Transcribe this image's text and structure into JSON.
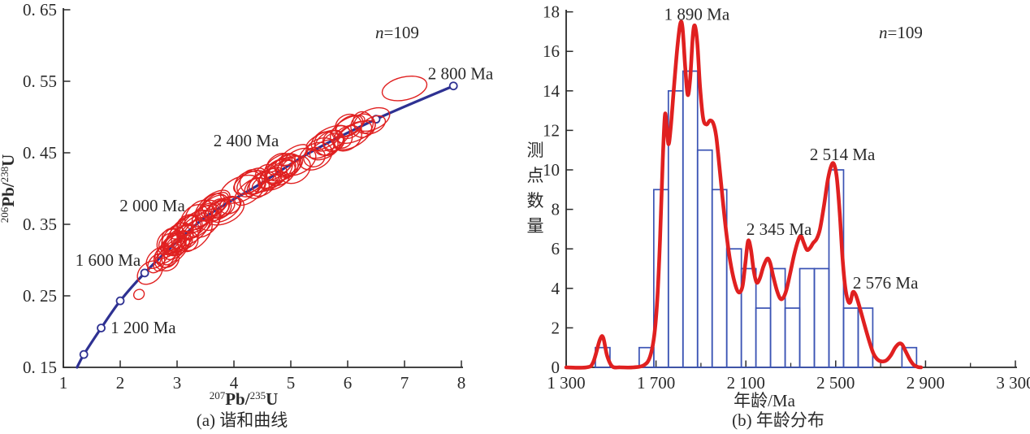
{
  "figure": {
    "n_italic": "n",
    "n_rest": "=109"
  },
  "chart_data": [
    {
      "type": "scatter",
      "subtype": "concordia-with-error-ellipses",
      "panel_caption": "(a) 谐和曲线",
      "xlabel_parts": [
        {
          "t": "207"
        },
        {
          "t": "Pb/"
        },
        {
          "t": "235"
        },
        {
          "t": "U"
        }
      ],
      "ylabel_parts": [
        {
          "t": "206"
        },
        {
          "t": "Pb/"
        },
        {
          "t": "238"
        },
        {
          "t": "U"
        }
      ],
      "xlim": [
        1,
        8
      ],
      "ylim": [
        0.15,
        0.65
      ],
      "x_ticks": [
        "1",
        "2",
        "3",
        "4",
        "5",
        "6",
        "7",
        "8"
      ],
      "y_ticks": [
        0.15,
        0.25,
        0.35,
        0.45,
        0.55,
        0.65
      ],
      "y_tick_labels": [
        "0. 15",
        "0. 25",
        "0. 35",
        "0. 45",
        "0. 55",
        "0. 65"
      ],
      "n_pos": [
        6.49,
        0.607
      ],
      "concordia_points": [
        [
          1.24,
          0.15
        ],
        [
          1.36,
          0.168
        ],
        [
          1.665,
          0.205
        ],
        [
          2.0,
          0.243
        ],
        [
          2.43,
          0.282
        ],
        [
          2.95,
          0.322
        ],
        [
          3.55,
          0.363
        ],
        [
          4.45,
          0.406
        ],
        [
          5.35,
          0.451
        ],
        [
          6.5,
          0.497
        ],
        [
          7.86,
          0.5435
        ]
      ],
      "markers": [
        [
          1.36,
          0.168
        ],
        [
          1.665,
          0.205
        ],
        [
          2.0,
          0.243
        ],
        [
          2.43,
          0.282
        ],
        [
          6.5,
          0.497
        ],
        [
          7.86,
          0.5435
        ]
      ],
      "age_labels": [
        {
          "text": "1 200 Ma",
          "x": 1.83,
          "y": 0.198
        },
        {
          "text": "1 600 Ma",
          "x": 1.21,
          "y": 0.292
        },
        {
          "text": "2 000 Ma",
          "x": 1.99,
          "y": 0.368
        },
        {
          "text": "2 400 Ma",
          "x": 3.64,
          "y": 0.459
        },
        {
          "text": "2 800 Ma",
          "x": 7.41,
          "y": 0.553
        }
      ],
      "ellipses_explicit": [
        {
          "x": 2.33,
          "y": 0.252,
          "rx": 0.095,
          "ry": 0.0068,
          "rot": -34
        },
        {
          "x": 7.0,
          "y": 0.54,
          "rx": 0.4,
          "ry": 0.016,
          "rot": -13
        }
      ],
      "ellipse_clusters": [
        {
          "cx": 2.62,
          "count": 3,
          "sx": 0.1,
          "sy": 0.008
        },
        {
          "cx": 2.95,
          "count": 12,
          "sx": 0.2,
          "sy": 0.012
        },
        {
          "cx": 3.15,
          "count": 16,
          "sx": 0.25,
          "sy": 0.013
        },
        {
          "cx": 3.5,
          "count": 10,
          "sx": 0.22,
          "sy": 0.012
        },
        {
          "cx": 3.95,
          "count": 7,
          "sx": 0.22,
          "sy": 0.01
        },
        {
          "cx": 4.5,
          "count": 14,
          "sx": 0.25,
          "sy": 0.012
        },
        {
          "cx": 4.95,
          "count": 11,
          "sx": 0.2,
          "sy": 0.011
        },
        {
          "cx": 5.5,
          "count": 8,
          "sx": 0.22,
          "sy": 0.01
        },
        {
          "cx": 5.95,
          "count": 9,
          "sx": 0.22,
          "sy": 0.01
        },
        {
          "cx": 6.35,
          "count": 4,
          "sx": 0.14,
          "sy": 0.008
        }
      ],
      "ellipse_seed": 13,
      "colors": {
        "curve": "#2e3192",
        "ellipse": "#e02020",
        "axis": "#2a2a2a"
      }
    },
    {
      "type": "histogram",
      "subtype": "age-distribution-with-kde",
      "panel_caption": "(b) 年龄分布",
      "xlabel": "年龄/Ma",
      "ylabel": "测点数量",
      "xlim": [
        1300,
        3300
      ],
      "ylim": [
        0,
        18
      ],
      "x_major_ticks": [
        1300,
        1700,
        2100,
        2500,
        2900,
        3300
      ],
      "x_tick_labels": [
        "1 300",
        "1 700",
        "2 100",
        "2 500",
        "2 900",
        "3 300"
      ],
      "x_minor_ticks": [
        1500,
        1900,
        2300,
        2700,
        3100
      ],
      "y_ticks": [
        0,
        2,
        4,
        6,
        8,
        10,
        12,
        14,
        16,
        18
      ],
      "y_tick_labels": [
        "0",
        "2",
        "4",
        "6",
        "8",
        "10",
        "12",
        "14",
        "16",
        "18"
      ],
      "n_pos": [
        2815,
        17.0
      ],
      "bin_width": 65,
      "bins": [
        {
          "start": 1430,
          "count": 1
        },
        {
          "start": 1625,
          "count": 1
        },
        {
          "start": 1690,
          "count": 9
        },
        {
          "start": 1755,
          "count": 14
        },
        {
          "start": 1820,
          "count": 15
        },
        {
          "start": 1885,
          "count": 11
        },
        {
          "start": 1950,
          "count": 9
        },
        {
          "start": 2015,
          "count": 6
        },
        {
          "start": 2080,
          "count": 5
        },
        {
          "start": 2145,
          "count": 3
        },
        {
          "start": 2210,
          "count": 5
        },
        {
          "start": 2275,
          "count": 3
        },
        {
          "start": 2340,
          "count": 5
        },
        {
          "start": 2405,
          "count": 5
        },
        {
          "start": 2470,
          "count": 10
        },
        {
          "start": 2535,
          "count": 3
        },
        {
          "start": 2600,
          "count": 3
        },
        {
          "start": 2795,
          "count": 1
        }
      ],
      "kde": [
        [
          1300,
          0
        ],
        [
          1390,
          0
        ],
        [
          1420,
          0.25
        ],
        [
          1450,
          1.4
        ],
        [
          1465,
          1.5
        ],
        [
          1482,
          0.6
        ],
        [
          1505,
          0.05
        ],
        [
          1540,
          0
        ],
        [
          1600,
          0
        ],
        [
          1645,
          0.1
        ],
        [
          1672,
          0.5
        ],
        [
          1692,
          1.6
        ],
        [
          1706,
          3.5
        ],
        [
          1718,
          6.5
        ],
        [
          1730,
          10.5
        ],
        [
          1740,
          12.8
        ],
        [
          1748,
          12.1
        ],
        [
          1756,
          11.3
        ],
        [
          1766,
          12.2
        ],
        [
          1780,
          14.2
        ],
        [
          1795,
          16.2
        ],
        [
          1808,
          17.4
        ],
        [
          1818,
          17.2
        ],
        [
          1830,
          15.2
        ],
        [
          1841,
          13.8
        ],
        [
          1852,
          14.6
        ],
        [
          1864,
          16.8
        ],
        [
          1873,
          17.3
        ],
        [
          1884,
          16.4
        ],
        [
          1896,
          14.2
        ],
        [
          1910,
          12.6
        ],
        [
          1925,
          12.3
        ],
        [
          1940,
          12.5
        ],
        [
          1955,
          12.35
        ],
        [
          1968,
          11.7
        ],
        [
          1982,
          10.2
        ],
        [
          1996,
          8.6
        ],
        [
          2012,
          6.9
        ],
        [
          2030,
          5.4
        ],
        [
          2050,
          4.3
        ],
        [
          2068,
          3.8
        ],
        [
          2085,
          4.1
        ],
        [
          2098,
          5.3
        ],
        [
          2110,
          6.4
        ],
        [
          2122,
          6.0
        ],
        [
          2135,
          4.9
        ],
        [
          2148,
          4.3
        ],
        [
          2162,
          4.5
        ],
        [
          2178,
          5.1
        ],
        [
          2195,
          5.5
        ],
        [
          2208,
          5.3
        ],
        [
          2222,
          4.6
        ],
        [
          2238,
          3.9
        ],
        [
          2252,
          3.5
        ],
        [
          2265,
          3.5
        ],
        [
          2280,
          3.9
        ],
        [
          2298,
          4.8
        ],
        [
          2315,
          5.7
        ],
        [
          2332,
          6.4
        ],
        [
          2345,
          6.65
        ],
        [
          2358,
          6.3
        ],
        [
          2372,
          5.95
        ],
        [
          2386,
          6.05
        ],
        [
          2400,
          6.3
        ],
        [
          2415,
          6.5
        ],
        [
          2430,
          7.0
        ],
        [
          2448,
          8.2
        ],
        [
          2465,
          9.5
        ],
        [
          2480,
          10.2
        ],
        [
          2492,
          10.3
        ],
        [
          2505,
          9.6
        ],
        [
          2518,
          7.8
        ],
        [
          2530,
          5.6
        ],
        [
          2542,
          4.1
        ],
        [
          2554,
          3.4
        ],
        [
          2565,
          3.3
        ],
        [
          2576,
          3.8
        ],
        [
          2588,
          3.7
        ],
        [
          2600,
          3.3
        ],
        [
          2615,
          2.7
        ],
        [
          2632,
          2.0
        ],
        [
          2650,
          1.3
        ],
        [
          2668,
          0.7
        ],
        [
          2686,
          0.4
        ],
        [
          2705,
          0.3
        ],
        [
          2725,
          0.35
        ],
        [
          2745,
          0.6
        ],
        [
          2765,
          1.0
        ],
        [
          2782,
          1.2
        ],
        [
          2796,
          1.15
        ],
        [
          2812,
          0.8
        ],
        [
          2830,
          0.4
        ],
        [
          2848,
          0.12
        ],
        [
          2866,
          0.02
        ],
        [
          2880,
          0
        ]
      ],
      "peak_labels": [
        {
          "text": "1 890 Ma",
          "x": 1882,
          "y": 17.6
        },
        {
          "text": "2 514 Ma",
          "x": 2530,
          "y": 10.5
        },
        {
          "text": "2 345 Ma",
          "x": 2248,
          "y": 6.7
        },
        {
          "text": "2 576 Ma",
          "x": 2722,
          "y": 4.0
        }
      ],
      "colors": {
        "bar": "#3a53b4",
        "kde": "#e02020",
        "axis": "#2a2a2a"
      }
    }
  ]
}
